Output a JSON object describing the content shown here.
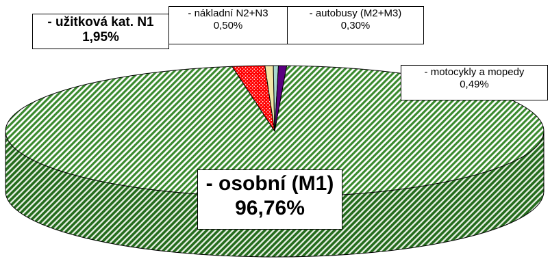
{
  "chart_data": {
    "type": "pie",
    "style": "3d",
    "slices": [
      {
        "label": "- osobní (M1)",
        "value": 96.76,
        "value_label": "96,76%",
        "color": "#3a8a2e"
      },
      {
        "label": "- užitková kat. N1",
        "value": 1.95,
        "value_label": "1,95%",
        "color": "#ff0000"
      },
      {
        "label": "- nákladní N2+N3",
        "value": 0.5,
        "value_label": "0,50%",
        "color": "#f2e6a6"
      },
      {
        "label": "- autobusy (M2+M3)",
        "value": 0.3,
        "value_label": "0,30%",
        "color": "#a8d8d0"
      },
      {
        "label": "- motocykly a mopedy",
        "value": 0.49,
        "value_label": "0,49%",
        "color": "#5a0080"
      }
    ]
  }
}
